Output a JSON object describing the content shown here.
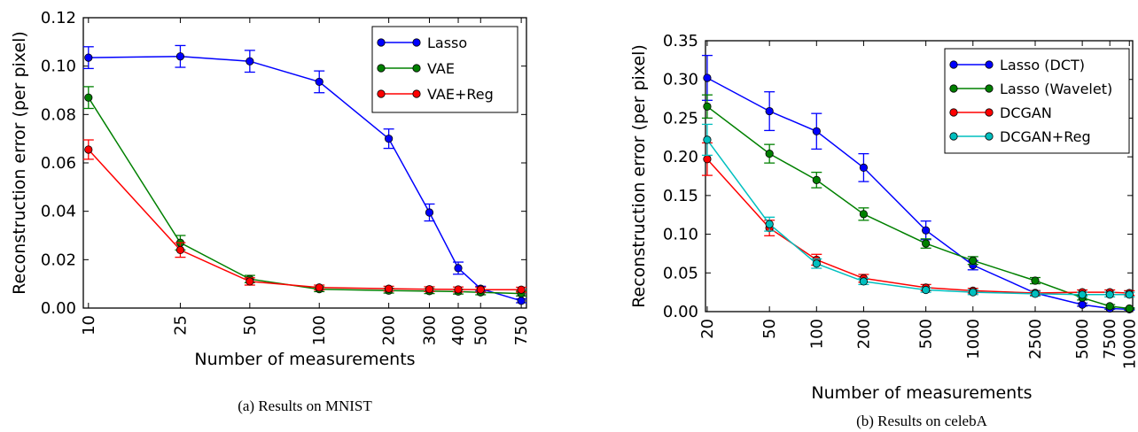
{
  "chart_data": [
    {
      "type": "line",
      "caption": "(a) Results on MNIST",
      "xlabel": "Number of measurements",
      "ylabel": "Reconstruction error (per pixel)",
      "x_scale": "log",
      "ylim": [
        0,
        0.12
      ],
      "yticks": [
        "0.00",
        "0.02",
        "0.04",
        "0.06",
        "0.08",
        "0.10",
        "0.12"
      ],
      "x_ticks": [
        "10",
        "25",
        "50",
        "100",
        "200",
        "300",
        "400",
        "500",
        "750"
      ],
      "legend_position": "top-right",
      "series": [
        {
          "name": "Lasso",
          "color": "#0000ff",
          "x": [
            10,
            25,
            50,
            100,
            200,
            300,
            400,
            500,
            750
          ],
          "y": [
            0.1035,
            0.104,
            0.102,
            0.0935,
            0.07,
            0.0395,
            0.0165,
            0.008,
            0.003
          ],
          "err": [
            0.0045,
            0.0045,
            0.0045,
            0.0045,
            0.004,
            0.0035,
            0.0025,
            0.001,
            0.0008
          ]
        },
        {
          "name": "VAE",
          "color": "#008000",
          "x": [
            10,
            25,
            50,
            100,
            200,
            300,
            400,
            500,
            750
          ],
          "y": [
            0.087,
            0.027,
            0.012,
            0.0078,
            0.0072,
            0.007,
            0.0068,
            0.0065,
            0.006
          ],
          "err": [
            0.0045,
            0.003,
            0.0015,
            0.001,
            0.001,
            0.001,
            0.001,
            0.001,
            0.001
          ]
        },
        {
          "name": "VAE+Reg",
          "color": "#ff0000",
          "x": [
            10,
            25,
            50,
            100,
            200,
            300,
            400,
            500,
            750
          ],
          "y": [
            0.0655,
            0.024,
            0.011,
            0.0085,
            0.008,
            0.0078,
            0.0077,
            0.0076,
            0.0076
          ],
          "err": [
            0.004,
            0.003,
            0.0015,
            0.001,
            0.001,
            0.001,
            0.001,
            0.001,
            0.001
          ]
        }
      ]
    },
    {
      "type": "line",
      "caption": "(b) Results on celebA",
      "xlabel": "Number of measurements",
      "ylabel": "Reconstruction error (per pixel)",
      "x_scale": "log",
      "ylim": [
        0,
        0.35
      ],
      "yticks": [
        "0.00",
        "0.05",
        "0.10",
        "0.15",
        "0.20",
        "0.25",
        "0.30",
        "0.35"
      ],
      "x_ticks": [
        "20",
        "50",
        "100",
        "200",
        "500",
        "1000",
        "2500",
        "5000",
        "7500",
        "10000"
      ],
      "legend_position": "top-right",
      "series": [
        {
          "name": "Lasso (DCT)",
          "color": "#0000ff",
          "x": [
            20,
            50,
            100,
            200,
            500,
            1000,
            2500,
            5000,
            7500,
            10000
          ],
          "y": [
            0.302,
            0.259,
            0.233,
            0.186,
            0.105,
            0.06,
            0.024,
            0.009,
            0.004,
            0.003
          ],
          "err": [
            0.029,
            0.025,
            0.023,
            0.018,
            0.012,
            0.006,
            0.003,
            0.002,
            0.001,
            0.001
          ]
        },
        {
          "name": "Lasso (Wavelet)",
          "color": "#008000",
          "x": [
            20,
            50,
            100,
            200,
            500,
            1000,
            2500,
            5000,
            7500,
            10000
          ],
          "y": [
            0.265,
            0.204,
            0.17,
            0.126,
            0.088,
            0.066,
            0.04,
            0.018,
            0.007,
            0.004
          ],
          "err": [
            0.015,
            0.012,
            0.01,
            0.008,
            0.006,
            0.005,
            0.004,
            0.003,
            0.002,
            0.001
          ]
        },
        {
          "name": "DCGAN",
          "color": "#ff0000",
          "x": [
            20,
            50,
            100,
            200,
            500,
            1000,
            2500,
            5000,
            7500,
            10000
          ],
          "y": [
            0.197,
            0.108,
            0.067,
            0.043,
            0.031,
            0.027,
            0.024,
            0.025,
            0.025,
            0.024
          ],
          "err": [
            0.021,
            0.01,
            0.007,
            0.005,
            0.004,
            0.003,
            0.003,
            0.003,
            0.003,
            0.003
          ]
        },
        {
          "name": "DCGAN+Reg",
          "color": "#00bfbf",
          "x": [
            20,
            50,
            100,
            200,
            500,
            1000,
            2500,
            5000,
            7500,
            10000
          ],
          "y": [
            0.222,
            0.113,
            0.062,
            0.039,
            0.028,
            0.025,
            0.023,
            0.022,
            0.022,
            0.022
          ],
          "err": [
            0.02,
            0.009,
            0.006,
            0.004,
            0.003,
            0.003,
            0.003,
            0.003,
            0.003,
            0.003
          ]
        }
      ]
    }
  ]
}
